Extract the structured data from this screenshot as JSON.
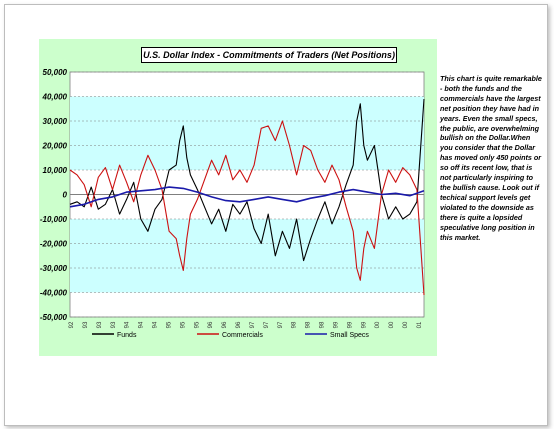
{
  "chart_data": {
    "type": "line",
    "title": "U.S. Dollar Index  - Commitments of Traders (Net Positions)",
    "xlabel": "",
    "ylabel": "",
    "ylim": [
      -50000,
      50000
    ],
    "yticks": [
      "50,000",
      "40,000",
      "30,000",
      "20,000",
      "10,000",
      "0",
      "-10,000",
      "-20,000",
      "-30,000",
      "-40,000",
      "-50,000"
    ],
    "x_tick_labels": [
      "92",
      "93",
      "93",
      "93",
      "94",
      "94",
      "94",
      "95",
      "95",
      "95",
      "96",
      "96",
      "96",
      "97",
      "97",
      "97",
      "98",
      "98",
      "98",
      "99",
      "99",
      "99",
      "00",
      "00",
      "00",
      "01"
    ],
    "x_range": [
      0,
      100
    ],
    "shaded_bands": [
      [
        10000,
        40000
      ],
      [
        -40000,
        -10000
      ]
    ],
    "grid": true,
    "legend_position": "bottom",
    "colors": {
      "background": "#ccffcc",
      "band": "#ccffff",
      "Funds": "#000000",
      "Commercials": "#cc1111",
      "Small Specs": "#1a1aaa"
    },
    "series": [
      {
        "name": "Funds",
        "x": [
          0,
          2,
          4,
          6,
          8,
          10,
          12,
          14,
          16,
          18,
          20,
          22,
          24,
          26,
          28,
          30,
          31,
          32,
          33,
          34,
          36,
          38,
          40,
          42,
          44,
          46,
          48,
          50,
          52,
          54,
          56,
          58,
          60,
          62,
          64,
          66,
          68,
          70,
          72,
          74,
          76,
          78,
          80,
          81,
          82,
          83,
          84,
          86,
          88,
          90,
          92,
          94,
          96,
          98,
          100
        ],
        "values": [
          -4000,
          -3000,
          -5000,
          3000,
          -6000,
          -4000,
          2000,
          -8000,
          -2000,
          5000,
          -10000,
          -15000,
          -6000,
          -2000,
          10000,
          12000,
          22000,
          28000,
          15000,
          8000,
          2000,
          -5000,
          -12000,
          -6000,
          -15000,
          -4000,
          -8000,
          -3000,
          -14000,
          -20000,
          -8000,
          -25000,
          -15000,
          -22000,
          -10000,
          -27000,
          -18000,
          -10000,
          -3000,
          -12000,
          -5000,
          4000,
          12000,
          30000,
          37000,
          20000,
          14000,
          20000,
          0,
          -10000,
          -5000,
          -10000,
          -8000,
          -3000,
          39000
        ]
      },
      {
        "name": "Commercials",
        "x": [
          0,
          2,
          4,
          6,
          8,
          10,
          12,
          14,
          16,
          18,
          20,
          22,
          24,
          26,
          28,
          30,
          31,
          32,
          33,
          34,
          36,
          38,
          40,
          42,
          44,
          46,
          48,
          50,
          52,
          54,
          56,
          58,
          60,
          62,
          64,
          66,
          68,
          70,
          72,
          74,
          76,
          78,
          80,
          81,
          82,
          83,
          84,
          86,
          88,
          90,
          92,
          94,
          96,
          98,
          100
        ],
        "values": [
          10000,
          8000,
          4000,
          -5000,
          7000,
          11000,
          2000,
          12000,
          5000,
          -3000,
          8000,
          16000,
          10000,
          2000,
          -15000,
          -18000,
          -25000,
          -31000,
          -18000,
          -8000,
          -2000,
          6000,
          14000,
          8000,
          16000,
          6000,
          10000,
          5000,
          12000,
          27000,
          28000,
          22000,
          30000,
          20000,
          8000,
          20000,
          18000,
          10000,
          5000,
          12000,
          6000,
          -5000,
          -15000,
          -30000,
          -35000,
          -22000,
          -15000,
          -22000,
          0,
          10000,
          5000,
          11000,
          8000,
          2000,
          -41000
        ]
      },
      {
        "name": "Small Specs",
        "x": [
          0,
          4,
          8,
          12,
          16,
          20,
          24,
          28,
          32,
          36,
          40,
          44,
          48,
          52,
          56,
          60,
          64,
          68,
          72,
          76,
          80,
          84,
          88,
          92,
          96,
          100
        ],
        "values": [
          -5000,
          -4000,
          -2000,
          -1000,
          1000,
          1500,
          2000,
          3000,
          2500,
          1000,
          -1000,
          -2500,
          -3000,
          -2000,
          -1000,
          -2000,
          -3000,
          -1500,
          -500,
          1000,
          2000,
          1000,
          0,
          500,
          -500,
          1500
        ]
      }
    ]
  },
  "commentary": "This chart is quite remarkable - both the funds and the commercials have the largest net position they have had in years. Even the small specs, the public, are overwhelming bullish on the Dollar.When you consider that the Dollar has moved only 450 points or so off its recent low, that is not particularly inspiring to the bullish cause. Look out if techical support levels get violated to the downside as there is quite a lopsided speculative long position in this market."
}
